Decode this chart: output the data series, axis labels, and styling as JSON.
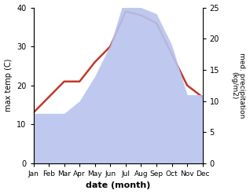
{
  "months": [
    "Jan",
    "Feb",
    "Mar",
    "Apr",
    "May",
    "Jun",
    "Jul",
    "Aug",
    "Sep",
    "Oct",
    "Nov",
    "Dec"
  ],
  "temp": [
    13,
    17,
    21,
    21,
    26,
    30,
    39,
    38,
    36,
    28,
    20,
    17
  ],
  "precip_kg": [
    8,
    8,
    8,
    10,
    14,
    19,
    27,
    25,
    24,
    19,
    11,
    11
  ],
  "temp_color": "#c0392b",
  "precip_color": "#b8c4ef",
  "temp_ylim": [
    0,
    40
  ],
  "right_ylim": [
    0,
    25
  ],
  "left_yticks": [
    0,
    10,
    20,
    30,
    40
  ],
  "right_yticks": [
    0,
    5,
    10,
    15,
    20,
    25
  ],
  "xlabel": "date (month)",
  "ylabel_left": "max temp (C)",
  "ylabel_right": "med. precipitation\n(kg/m2)",
  "bg_color": "#ffffff",
  "temp_linewidth": 1.8
}
